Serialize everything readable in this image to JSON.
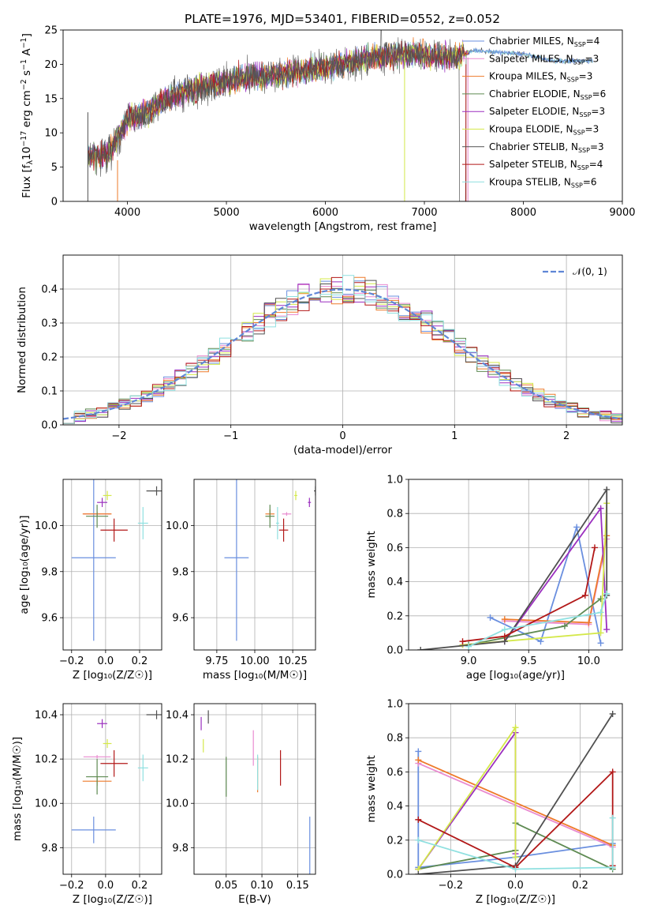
{
  "title": "PLATE=1976, MJD=53401, FIBERID=0552, z=0.052",
  "colors": [
    "#6a8fdf",
    "#e98bd0",
    "#ee7a2a",
    "#5e8a52",
    "#9b2fbf",
    "#d4e84a",
    "#505050",
    "#b21818",
    "#8fe0e0"
  ],
  "legend": [
    {
      "label": "Chabrier MILES, N",
      "sub": "SSP",
      "n": "=4"
    },
    {
      "label": "Salpeter MILES, N",
      "sub": "SSP",
      "n": "=3"
    },
    {
      "label": "Kroupa MILES, N",
      "sub": "SSP",
      "n": "=3"
    },
    {
      "label": "Chabrier ELODIE, N",
      "sub": "SSP",
      "n": "=6"
    },
    {
      "label": "Salpeter ELODIE, N",
      "sub": "SSP",
      "n": "=3"
    },
    {
      "label": "Kroupa ELODIE, N",
      "sub": "SSP",
      "n": "=3"
    },
    {
      "label": "Chabrier STELIB, N",
      "sub": "SSP",
      "n": "=3"
    },
    {
      "label": "Salpeter STELIB, N",
      "sub": "SSP",
      "n": "=4"
    },
    {
      "label": "Kroupa STELIB, N",
      "sub": "SSP",
      "n": "=6"
    }
  ],
  "chart_data": [
    {
      "id": "spectrum",
      "type": "line",
      "xlabel": "wavelength [Angstrom, rest frame]",
      "ylabel_parts": [
        "Flux [f",
        "λ",
        "10",
        "−17",
        " erg cm",
        "−2",
        " s",
        "−1",
        " A",
        "−1",
        "]"
      ],
      "xlim": [
        3350,
        9000
      ],
      "ylim": [
        0,
        25
      ],
      "xticks": [
        4000,
        5000,
        6000,
        7000,
        8000,
        9000
      ],
      "yticks": [
        0,
        5,
        10,
        15,
        20,
        25
      ],
      "continuum": [
        [
          3600,
          6.5
        ],
        [
          3800,
          6.8
        ],
        [
          3900,
          9
        ],
        [
          4000,
          12
        ],
        [
          4200,
          13
        ],
        [
          4400,
          15
        ],
        [
          4600,
          16
        ],
        [
          4800,
          17
        ],
        [
          5000,
          17.5
        ],
        [
          5200,
          18
        ],
        [
          5500,
          18.5
        ],
        [
          6000,
          19.5
        ],
        [
          6500,
          21
        ],
        [
          6700,
          21.5
        ],
        [
          7000,
          21.5
        ],
        [
          7300,
          21
        ],
        [
          7500,
          22
        ],
        [
          8000,
          21.5
        ],
        [
          8300,
          20.5
        ],
        [
          8700,
          20.5
        ]
      ]
    },
    {
      "id": "residuals",
      "type": "step",
      "xlabel": "(data-model)/error",
      "ylabel": "Normed distribution",
      "xlim": [
        -2.5,
        2.5
      ],
      "ylim": [
        0,
        0.5
      ],
      "xticks": [
        -2,
        -1,
        0,
        1,
        2
      ],
      "yticks": [
        0,
        0.1,
        0.2,
        0.3,
        0.4
      ],
      "gaussian_label": "𝒩(0, 1)",
      "bin_width": 0.1
    },
    {
      "id": "age_vs_Z",
      "type": "errorbar",
      "xlabel": "Z [log₁₀(Z/Z☉)]",
      "ylabel": "age  [log₁₀(age/yr)]",
      "xlim": [
        -0.25,
        0.33
      ],
      "ylim": [
        9.46,
        10.2
      ],
      "xticks": [
        -0.2,
        0.0,
        0.2
      ],
      "yticks": [
        9.6,
        9.8,
        10.0
      ],
      "points": [
        {
          "x": -0.07,
          "y": 9.86,
          "ex": 0.26,
          "ey": 0.36
        },
        {
          "x": -0.05,
          "y": 10.05,
          "ex": 0.16,
          "ey": 0.0
        },
        {
          "x": -0.05,
          "y": 10.05,
          "ex": 0.17,
          "ey": 0.0
        },
        {
          "x": -0.05,
          "y": 10.04,
          "ex": 0.13,
          "ey": 0.05
        },
        {
          "x": -0.02,
          "y": 10.1,
          "ex": 0.06,
          "ey": 0.02
        },
        {
          "x": 0.01,
          "y": 10.13,
          "ex": 0.05,
          "ey": 0.02
        },
        {
          "x": 0.3,
          "y": 10.15,
          "ex": 0.12,
          "ey": 0.02
        },
        {
          "x": 0.05,
          "y": 9.98,
          "ex": 0.16,
          "ey": 0.05
        },
        {
          "x": 0.22,
          "y": 10.01,
          "ex": 0.06,
          "ey": 0.07
        }
      ]
    },
    {
      "id": "age_vs_mass",
      "type": "errorbar",
      "xlabel": "mass [log₁₀(M/M☉)]",
      "ylabel": "",
      "xlim": [
        9.6,
        10.4
      ],
      "ylim": [
        9.46,
        10.2
      ],
      "xticks": [
        9.75,
        10.0,
        10.25
      ],
      "yticks": [
        9.6,
        9.8,
        10.0
      ],
      "points": [
        {
          "x": 9.88,
          "y": 9.86,
          "ex": 0.16,
          "ey": 0.36
        },
        {
          "x": 10.21,
          "y": 10.05,
          "ex": 0.06,
          "ey": 0.0
        },
        {
          "x": 10.1,
          "y": 10.05,
          "ex": 0.06,
          "ey": 0.02
        },
        {
          "x": 10.1,
          "y": 10.04,
          "ex": 0.06,
          "ey": 0.05
        },
        {
          "x": 10.36,
          "y": 10.1,
          "ex": 0.02,
          "ey": 0.02
        },
        {
          "x": 10.27,
          "y": 10.13,
          "ex": 0.02,
          "ey": 0.02
        },
        {
          "x": 10.4,
          "y": 10.15,
          "ex": 0.02,
          "ey": 0.02
        },
        {
          "x": 10.19,
          "y": 9.98,
          "ex": 0.06,
          "ey": 0.05
        },
        {
          "x": 10.15,
          "y": 10.01,
          "ex": 0.02,
          "ey": 0.07
        }
      ]
    },
    {
      "id": "weight_vs_age",
      "type": "line",
      "xlabel": "age  [log₁₀(age/yr)]",
      "ylabel": "mass weight",
      "xlim": [
        8.5,
        10.28
      ],
      "ylim": [
        0,
        1
      ],
      "xticks": [
        9.0,
        9.5,
        10.0
      ],
      "yticks": [
        0.0,
        0.2,
        0.4,
        0.6,
        0.8,
        1.0
      ],
      "series": [
        [
          [
            9.18,
            0.19
          ],
          [
            9.6,
            0.05
          ],
          [
            9.9,
            0.72
          ],
          [
            10.1,
            0.04
          ]
        ],
        [
          [
            9.3,
            0.17
          ],
          [
            10.0,
            0.15
          ],
          [
            10.15,
            0.65
          ]
        ],
        [
          [
            9.3,
            0.18
          ],
          [
            10.0,
            0.16
          ],
          [
            10.15,
            0.67
          ]
        ],
        [
          [
            9.0,
            0.03
          ],
          [
            9.8,
            0.14
          ],
          [
            10.1,
            0.3
          ]
        ],
        [
          [
            8.95,
            0.03
          ],
          [
            9.3,
            0.05
          ],
          [
            10.1,
            0.83
          ],
          [
            10.15,
            0.12
          ]
        ],
        [
          [
            8.95,
            0.03
          ],
          [
            10.1,
            0.1
          ],
          [
            10.15,
            0.86
          ]
        ],
        [
          [
            8.6,
            0.0
          ],
          [
            9.3,
            0.05
          ],
          [
            10.15,
            0.94
          ],
          [
            10.15,
            0.32
          ]
        ],
        [
          [
            8.95,
            0.05
          ],
          [
            9.3,
            0.08
          ],
          [
            9.97,
            0.32
          ],
          [
            10.05,
            0.6
          ]
        ],
        [
          [
            9.0,
            0.02
          ],
          [
            9.3,
            0.12
          ],
          [
            10.1,
            0.22
          ],
          [
            10.15,
            0.33
          ]
        ]
      ]
    },
    {
      "id": "mass_vs_Z",
      "type": "errorbar",
      "xlabel": "Z [log₁₀(Z/Z☉)]",
      "ylabel": "mass [log₁₀(M/M☉)]",
      "xlim": [
        -0.25,
        0.33
      ],
      "ylim": [
        9.68,
        10.45
      ],
      "xticks": [
        -0.2,
        0.0,
        0.2
      ],
      "yticks": [
        9.8,
        10.0,
        10.2,
        10.4
      ],
      "points": [
        {
          "x": -0.07,
          "y": 9.88,
          "ex": 0.26,
          "ey": 0.06
        },
        {
          "x": -0.05,
          "y": 10.21,
          "ex": 0.16,
          "ey": 0.0
        },
        {
          "x": -0.05,
          "y": 10.1,
          "ex": 0.17,
          "ey": 0.02
        },
        {
          "x": -0.05,
          "y": 10.12,
          "ex": 0.13,
          "ey": 0.08
        },
        {
          "x": -0.02,
          "y": 10.36,
          "ex": 0.06,
          "ey": 0.02
        },
        {
          "x": 0.01,
          "y": 10.27,
          "ex": 0.05,
          "ey": 0.02
        },
        {
          "x": 0.3,
          "y": 10.4,
          "ex": 0.12,
          "ey": 0.02
        },
        {
          "x": 0.05,
          "y": 10.18,
          "ex": 0.16,
          "ey": 0.06
        },
        {
          "x": 0.22,
          "y": 10.16,
          "ex": 0.06,
          "ey": 0.06
        }
      ]
    },
    {
      "id": "mass_vs_EBV",
      "type": "errorbar",
      "xlabel": "E(B-V)",
      "ylabel": "",
      "xlim": [
        0.005,
        0.175
      ],
      "ylim": [
        9.68,
        10.45
      ],
      "xticks": [
        0.05,
        0.1,
        0.15
      ],
      "yticks": [
        9.8,
        10.0,
        10.2,
        10.4
      ],
      "points": [
        {
          "x": 0.167,
          "y": 9.81,
          "ex": 0,
          "ey": 0.13
        },
        {
          "x": 0.088,
          "y": 10.25,
          "ex": 0,
          "ey": 0.08
        },
        {
          "x": 0.094,
          "y": 10.13,
          "ex": 0,
          "ey": 0.08
        },
        {
          "x": 0.05,
          "y": 10.12,
          "ex": 0,
          "ey": 0.09
        },
        {
          "x": 0.015,
          "y": 10.36,
          "ex": 0,
          "ey": 0.03
        },
        {
          "x": 0.018,
          "y": 10.26,
          "ex": 0,
          "ey": 0.03
        },
        {
          "x": 0.025,
          "y": 10.39,
          "ex": 0,
          "ey": 0.03
        },
        {
          "x": 0.126,
          "y": 10.16,
          "ex": 0,
          "ey": 0.08
        },
        {
          "x": 0.094,
          "y": 10.14,
          "ex": 0,
          "ey": 0.08
        }
      ]
    },
    {
      "id": "weight_vs_Z",
      "type": "line",
      "xlabel": "Z [log₁₀(Z/Z☉)]",
      "ylabel": "mass weight",
      "xlim": [
        -0.33,
        0.33
      ],
      "ylim": [
        0,
        1
      ],
      "xticks": [
        -0.2,
        0.0,
        0.2
      ],
      "yticks": [
        0.0,
        0.2,
        0.4,
        0.6,
        0.8,
        1.0
      ],
      "series": [
        [
          [
            -0.3,
            0.72
          ],
          [
            -0.3,
            0.04
          ],
          [
            0.0,
            0.1
          ],
          [
            0.3,
            0.18
          ]
        ],
        [
          [
            -0.3,
            0.65
          ],
          [
            0.3,
            0.16
          ]
        ],
        [
          [
            -0.3,
            0.67
          ],
          [
            0.3,
            0.17
          ]
        ],
        [
          [
            -0.3,
            0.03
          ],
          [
            0.0,
            0.14
          ],
          [
            0.0,
            0.3
          ],
          [
            0.3,
            0.03
          ]
        ],
        [
          [
            -0.3,
            0.03
          ],
          [
            0.0,
            0.83
          ],
          [
            0.0,
            0.12
          ]
        ],
        [
          [
            -0.3,
            0.03
          ],
          [
            0.0,
            0.86
          ],
          [
            0.0,
            0.1
          ]
        ],
        [
          [
            -0.3,
            0.0
          ],
          [
            0.0,
            0.05
          ],
          [
            0.3,
            0.94
          ]
        ],
        [
          [
            -0.3,
            0.32
          ],
          [
            0.0,
            0.04
          ],
          [
            0.3,
            0.6
          ],
          [
            0.3,
            0.05
          ]
        ],
        [
          [
            -0.3,
            0.2
          ],
          [
            0.0,
            0.03
          ],
          [
            0.3,
            0.04
          ],
          [
            0.3,
            0.33
          ]
        ]
      ]
    }
  ]
}
